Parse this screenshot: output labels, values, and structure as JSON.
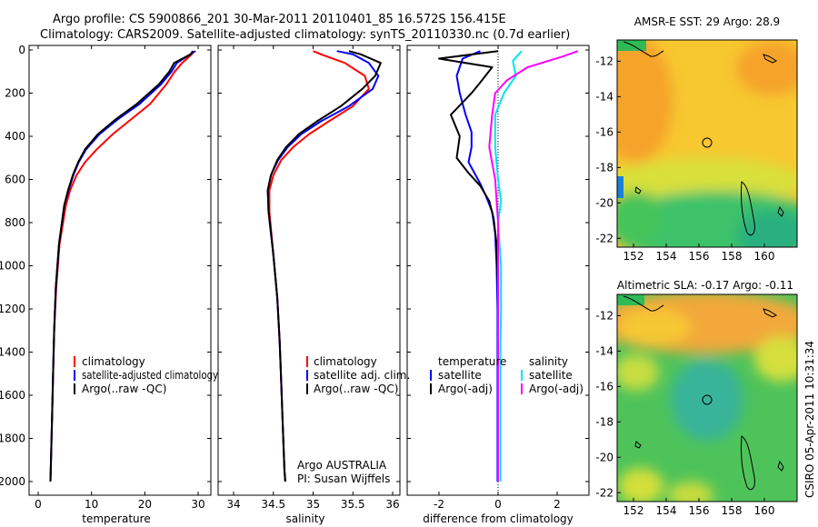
{
  "title": {
    "line1": "Argo profile: CS 5900866_201 30-Mar-2011 20110401_85 16.572S 156.415E",
    "line2": "Climatology: CARS2009. Satellite-adjusted climatology: synTS_20110330.nc (0.7d earlier)"
  },
  "side_label": "CSIRO 05-Apr-2011 10:31:34",
  "chart_data": [
    {
      "type": "line",
      "id": "temperature",
      "xlabel": "temperature",
      "ylabel": "",
      "xlim": [
        -2,
        31
      ],
      "ylim": [
        2050,
        0
      ],
      "xticks": [
        0,
        10,
        20,
        30
      ],
      "yticks": [
        0,
        200,
        400,
        600,
        800,
        1000,
        1200,
        1400,
        1600,
        1800,
        2000
      ],
      "legend": [
        "climatology",
        "satellite-adjusted climatology",
        "Argo(..raw -QC)"
      ],
      "series": [
        {
          "name": "climatology",
          "color": "#ff0000",
          "x": [
            29.2,
            28.8,
            27.0,
            25.6,
            24.0,
            21.0,
            17.5,
            14.0,
            11.0,
            8.8,
            7.2,
            6.0,
            5.2,
            4.0,
            3.4,
            3.0,
            2.8,
            2.6,
            2.4,
            2.3
          ],
          "y": [
            5,
            20,
            60,
            100,
            160,
            250,
            320,
            390,
            460,
            520,
            580,
            650,
            720,
            900,
            1100,
            1300,
            1500,
            1700,
            1900,
            2000
          ]
        },
        {
          "name": "satellite-adjusted climatology",
          "color": "#0000ff",
          "x": [
            29.5,
            28.5,
            26.0,
            25.0,
            23.0,
            19.0,
            15.0,
            11.5,
            9.0,
            7.6,
            6.6,
            5.7,
            4.9,
            3.9,
            3.3,
            3.0,
            2.8,
            2.6,
            2.4,
            2.3
          ],
          "y": [
            5,
            20,
            60,
            100,
            160,
            250,
            320,
            390,
            460,
            520,
            580,
            650,
            720,
            900,
            1100,
            1300,
            1500,
            1700,
            1900,
            2000
          ]
        },
        {
          "name": "Argo(..raw -QC)",
          "color": "#000000",
          "x": [
            29.0,
            28.6,
            25.5,
            24.6,
            22.6,
            18.5,
            14.6,
            11.2,
            8.8,
            7.5,
            6.5,
            5.6,
            4.9,
            3.9,
            3.3,
            3.0,
            2.8,
            2.6,
            2.4,
            2.3
          ],
          "y": [
            5,
            20,
            60,
            100,
            160,
            250,
            320,
            390,
            460,
            520,
            580,
            650,
            720,
            900,
            1100,
            1300,
            1500,
            1700,
            1900,
            2000
          ]
        }
      ]
    },
    {
      "type": "line",
      "id": "salinity",
      "xlabel": "salinity",
      "xlim": [
        33.8,
        36.0
      ],
      "ylim": [
        2050,
        0
      ],
      "xticks": [
        34,
        34.5,
        35,
        35.5,
        36
      ],
      "legend": [
        "climatology",
        "satellite adj. clim.",
        "Argo(..raw -QC)"
      ],
      "annotation": [
        "Argo AUSTRALIA",
        "PI: Susan Wijffels"
      ],
      "series": [
        {
          "name": "climatology",
          "color": "#ff0000",
          "x": [
            35.0,
            35.1,
            35.4,
            35.65,
            35.7,
            35.5,
            35.2,
            34.95,
            34.75,
            34.6,
            34.5,
            34.45,
            34.45,
            34.5,
            34.55,
            34.58,
            34.6,
            34.62,
            34.64,
            34.65
          ],
          "y": [
            5,
            20,
            60,
            120,
            180,
            260,
            330,
            390,
            450,
            510,
            580,
            650,
            750,
            950,
            1150,
            1350,
            1550,
            1750,
            1950,
            2000
          ]
        },
        {
          "name": "satellite adj. clim.",
          "color": "#0000ff",
          "x": [
            35.3,
            35.5,
            35.7,
            35.82,
            35.75,
            35.45,
            35.1,
            34.85,
            34.68,
            34.56,
            34.47,
            34.43,
            34.44,
            34.5,
            34.55,
            34.58,
            34.6,
            34.62,
            34.64,
            34.65
          ],
          "y": [
            5,
            20,
            60,
            120,
            180,
            260,
            330,
            390,
            450,
            510,
            580,
            650,
            750,
            950,
            1150,
            1350,
            1550,
            1750,
            1950,
            2000
          ]
        },
        {
          "name": "Argo(..raw -QC)",
          "color": "#000000",
          "x": [
            35.45,
            35.6,
            35.85,
            35.78,
            35.62,
            35.35,
            35.05,
            34.82,
            34.66,
            34.55,
            34.47,
            34.43,
            34.44,
            34.5,
            34.55,
            34.58,
            34.6,
            34.62,
            34.64,
            34.65
          ],
          "y": [
            5,
            20,
            60,
            120,
            180,
            260,
            330,
            390,
            450,
            510,
            580,
            650,
            750,
            950,
            1150,
            1350,
            1550,
            1750,
            1950,
            2000
          ]
        }
      ]
    },
    {
      "type": "line",
      "id": "difference",
      "xlabel": "difference from climatology",
      "xlim": [
        -3,
        3
      ],
      "ylim": [
        2050,
        0
      ],
      "xticks": [
        -2,
        0,
        2
      ],
      "legend_temperature_header": "temperature",
      "legend_salinity_header": "salinity",
      "legend": [
        "satellite",
        "Argo(-adj)",
        "satellite",
        "Argo(-adj)"
      ],
      "series": [
        {
          "name": "temperature satellite",
          "color": "#0000ff",
          "x": [
            -0.6,
            -1.2,
            -1.4,
            -1.3,
            -1.1,
            -0.9,
            -0.9,
            -1.0,
            -0.8,
            -0.6,
            -0.4,
            -0.2,
            -0.1,
            -0.05,
            -0.02,
            -0.02,
            -0.02,
            -0.02,
            -0.02
          ],
          "y": [
            5,
            40,
            120,
            200,
            300,
            380,
            450,
            520,
            570,
            620,
            680,
            750,
            850,
            1000,
            1200,
            1400,
            1600,
            1800,
            2000
          ]
        },
        {
          "name": "temperature Argo(-adj)",
          "color": "#000000",
          "x": [
            0.0,
            -2.0,
            -0.2,
            -0.6,
            -0.9,
            -1.6,
            -1.3,
            -1.4,
            -1.0,
            -0.6,
            -0.3,
            -0.15,
            -0.05,
            0.0,
            0.0,
            0.0,
            0.0,
            0.0,
            0.0
          ],
          "y": [
            5,
            40,
            80,
            150,
            200,
            300,
            400,
            500,
            570,
            630,
            700,
            780,
            900,
            1100,
            1300,
            1500,
            1700,
            1900,
            2000
          ]
        },
        {
          "name": "salinity satellite",
          "color": "#00e5ee",
          "x": [
            0.8,
            0.5,
            0.6,
            0.2,
            -0.1,
            -0.1,
            0.0,
            0.1,
            0.0,
            0.05,
            0.1,
            0.1,
            0.08,
            0.08,
            0.08,
            0.08
          ],
          "y": [
            5,
            50,
            120,
            200,
            300,
            450,
            600,
            700,
            800,
            900,
            1000,
            1200,
            1400,
            1600,
            1800,
            2000
          ]
        },
        {
          "name": "salinity Argo(-adj)",
          "color": "#ff00ff",
          "x": [
            2.7,
            2.2,
            1.0,
            0.3,
            -0.1,
            -0.2,
            -0.3,
            -0.1,
            0.0,
            0.0,
            0.0,
            0.0,
            0.0,
            0.0
          ],
          "y": [
            5,
            30,
            80,
            140,
            200,
            300,
            450,
            600,
            800,
            1000,
            1200,
            1500,
            1800,
            2000
          ]
        }
      ]
    },
    {
      "type": "heatmap",
      "id": "sst_map",
      "title": "AMSR-E SST: 29 Argo: 28.9",
      "xlim": [
        151,
        162
      ],
      "ylim": [
        -22.5,
        -10.8
      ],
      "xticks": [
        152,
        154,
        156,
        158,
        160
      ],
      "yticks": [
        -12,
        -14,
        -16,
        -18,
        -20,
        -22
      ],
      "marker": {
        "lon": 156.415,
        "lat": -16.572
      }
    },
    {
      "type": "heatmap",
      "id": "sla_map",
      "title": "Altimetric SLA: -0.17 Argo: -0.11",
      "xlim": [
        151,
        162
      ],
      "ylim": [
        -22.5,
        -10.8
      ],
      "xticks": [
        152,
        154,
        156,
        158,
        160
      ],
      "yticks": [
        -12,
        -14,
        -16,
        -18,
        -20,
        -22
      ],
      "marker": {
        "lon": 156.415,
        "lat": -16.572
      }
    }
  ]
}
